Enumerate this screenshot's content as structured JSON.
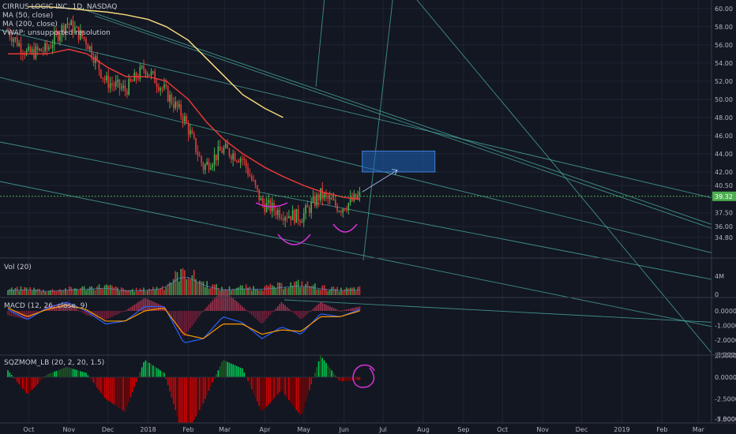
{
  "header": {
    "symbol_line": "CIRRUS LOGIC INC, 1D, NASDAQ",
    "ma50": "MA (50, close)",
    "ma200": "MA (200, close)",
    "vwap": "VWAP: unsupported resolution"
  },
  "panes": {
    "volume_label": "Vol (20)",
    "macd_label": "MACD (12, 26, close, 9)",
    "sqz_label": "SQZMOM_LB (20, 2, 20, 1.5)"
  },
  "price_badge": "39.32",
  "colors": {
    "background": "#131722",
    "up": "#4caf50",
    "down": "#e53935",
    "ma50": "#e53935",
    "ma200": "#f5d97a",
    "trendline": "#4db6ac",
    "target_box": "#1e63b8",
    "annotation": "#d633d6",
    "macd": "#2962ff",
    "signal": "#ff9800"
  },
  "chart_data": [
    {
      "type": "line",
      "name": "price",
      "title": "CIRRUS LOGIC INC, 1D, NASDAQ",
      "y_ticks": [
        "60.00",
        "58.00",
        "56.00",
        "54.00",
        "52.00",
        "50.00",
        "48.00",
        "46.00",
        "44.00",
        "42.00",
        "40.50",
        "39.32",
        "37.50",
        "36.00",
        "34.80"
      ],
      "x_ticks": [
        "Oct",
        "Nov",
        "Dec",
        "2018",
        "Feb",
        "Mar",
        "Apr",
        "May",
        "Jun",
        "Jul",
        "Aug",
        "Sep",
        "Oct",
        "Nov",
        "Dec",
        "2019",
        "Feb",
        "Mar"
      ],
      "x": [
        "2017-09-15",
        "2017-10-01",
        "2017-10-15",
        "2017-11-01",
        "2017-11-15",
        "2017-12-01",
        "2017-12-15",
        "2018-01-01",
        "2018-01-15",
        "2018-02-01",
        "2018-02-15",
        "2018-03-01",
        "2018-03-15",
        "2018-04-01",
        "2018-04-15",
        "2018-05-01",
        "2018-05-15",
        "2018-06-01",
        "2018-06-13"
      ],
      "series": [
        {
          "name": "close",
          "values": [
            57.5,
            55.0,
            55.5,
            58.5,
            56.5,
            52.0,
            51.0,
            53.5,
            51.0,
            48.0,
            42.5,
            44.5,
            43.5,
            38.5,
            37.5,
            37.0,
            39.5,
            38.0,
            39.32
          ]
        },
        {
          "name": "MA (50, close)",
          "values": [
            55.0,
            55.0,
            55.0,
            55.5,
            55.0,
            53.5,
            52.5,
            52.5,
            52.0,
            50.0,
            47.5,
            45.5,
            44.0,
            42.5,
            41.5,
            40.5,
            39.8,
            39.2,
            39.0
          ]
        },
        {
          "name": "MA (200, close)",
          "values": [
            null,
            60.2,
            60.2,
            60.0,
            59.8,
            59.6,
            59.3,
            58.8,
            58.0,
            56.5,
            54.5,
            52.5,
            50.5,
            49.0,
            48.0,
            null,
            null,
            null,
            null
          ]
        }
      ],
      "ylim": [
        34.0,
        60.5
      ],
      "target_zone": {
        "low": 42.0,
        "high": 44.3,
        "start": "2018-06-15",
        "end": "2018-08-10"
      },
      "last_price": 39.32,
      "grid": true
    },
    {
      "type": "bar",
      "name": "Vol (20)",
      "y_ticks": [
        "4M",
        "0"
      ],
      "values_millions": [
        1.0,
        1.2,
        0.8,
        1.1,
        1.3,
        1.6,
        0.9,
        1.0,
        1.5,
        4.5,
        2.2,
        1.1,
        1.4,
        1.3,
        1.7,
        2.1,
        1.4,
        1.0,
        1.2
      ]
    },
    {
      "type": "line",
      "name": "MACD (12, 26, close, 9)",
      "y_ticks": [
        "0.0000",
        "-1.0000",
        "-2.0000",
        "-3.0000"
      ],
      "series": [
        {
          "name": "macd",
          "values": [
            0.1,
            -0.6,
            0.2,
            0.6,
            0.0,
            -0.9,
            -0.7,
            0.3,
            0.3,
            -2.2,
            -1.9,
            -0.4,
            -0.8,
            -1.9,
            -1.1,
            -1.6,
            -0.2,
            -0.4,
            0.1
          ]
        },
        {
          "name": "signal",
          "values": [
            0.2,
            -0.4,
            0.1,
            0.4,
            0.1,
            -0.7,
            -0.7,
            0.0,
            0.2,
            -1.6,
            -1.9,
            -0.9,
            -0.9,
            -1.6,
            -1.3,
            -1.4,
            -0.4,
            -0.4,
            0.0
          ]
        }
      ]
    },
    {
      "type": "bar",
      "name": "SQZMOM_LB (20, 2, 20, 1.5)",
      "y_ticks": [
        "2.5000",
        "0.0000",
        "-2.5000",
        "-5.0000",
        "-7.5000"
      ],
      "values": [
        0.8,
        -2.0,
        0.3,
        1.2,
        0.5,
        -2.5,
        -4.0,
        2.0,
        0.5,
        -7.0,
        -3.0,
        2.0,
        1.0,
        -4.0,
        -1.5,
        -4.5,
        2.5,
        -0.5,
        -0.3
      ]
    }
  ]
}
